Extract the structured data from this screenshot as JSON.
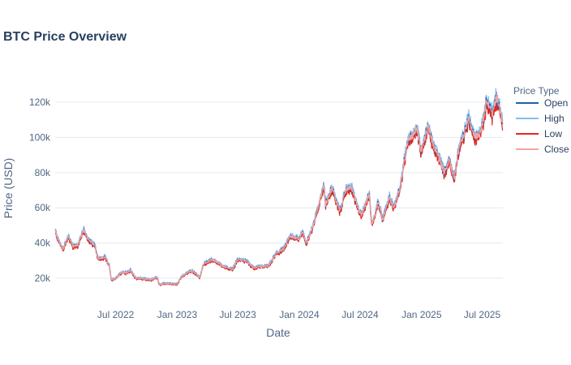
{
  "chart_data": {
    "type": "line",
    "title": "BTC Price Overview",
    "xlabel": "Date",
    "ylabel": "Price (USD)",
    "x_range": [
      "2022-01-01",
      "2025-09-01"
    ],
    "ylim": [
      8000,
      132000
    ],
    "y_ticks": [
      20000,
      40000,
      60000,
      80000,
      100000,
      120000
    ],
    "y_tick_labels": [
      "20k",
      "40k",
      "60k",
      "80k",
      "100k",
      "120k"
    ],
    "x_ticks": [
      "2022-07-01",
      "2023-01-01",
      "2023-07-01",
      "2024-01-01",
      "2024-07-01",
      "2025-01-01",
      "2025-07-01"
    ],
    "x_tick_labels": [
      "Jul 2022",
      "Jan 2023",
      "Jul 2023",
      "Jan 2024",
      "Jul 2024",
      "Jan 2025",
      "Jul 2025"
    ],
    "grid": true,
    "legend_title": "Price Type",
    "legend_position": "right",
    "series_colors": {
      "Open": "#1f5fa8",
      "High": "#7fbef5",
      "Low": "#e3281f",
      "Close": "#f5a3a0"
    },
    "close_points": [
      [
        "2022-01-01",
        47000
      ],
      [
        "2022-01-10",
        41800
      ],
      [
        "2022-01-24",
        36500
      ],
      [
        "2022-02-10",
        44000
      ],
      [
        "2022-02-24",
        38000
      ],
      [
        "2022-03-10",
        39000
      ],
      [
        "2022-03-28",
        47500
      ],
      [
        "2022-04-10",
        42000
      ],
      [
        "2022-04-30",
        38500
      ],
      [
        "2022-05-10",
        31000
      ],
      [
        "2022-05-31",
        31800
      ],
      [
        "2022-06-12",
        27000
      ],
      [
        "2022-06-18",
        19000
      ],
      [
        "2022-06-30",
        20000
      ],
      [
        "2022-07-20",
        23500
      ],
      [
        "2022-08-01",
        23000
      ],
      [
        "2022-08-14",
        24500
      ],
      [
        "2022-08-31",
        20000
      ],
      [
        "2022-09-15",
        20000
      ],
      [
        "2022-10-01",
        19300
      ],
      [
        "2022-10-15",
        19200
      ],
      [
        "2022-11-01",
        20500
      ],
      [
        "2022-11-09",
        16500
      ],
      [
        "2022-11-30",
        17000
      ],
      [
        "2022-12-31",
        16500
      ],
      [
        "2023-01-14",
        20900
      ],
      [
        "2023-01-31",
        23100
      ],
      [
        "2023-02-15",
        24300
      ],
      [
        "2023-03-10",
        20300
      ],
      [
        "2023-03-20",
        28000
      ],
      [
        "2023-04-14",
        30500
      ],
      [
        "2023-04-30",
        29300
      ],
      [
        "2023-05-15",
        27000
      ],
      [
        "2023-06-15",
        25000
      ],
      [
        "2023-06-30",
        30500
      ],
      [
        "2023-07-15",
        30300
      ],
      [
        "2023-07-31",
        29200
      ],
      [
        "2023-08-17",
        26000
      ],
      [
        "2023-09-15",
        26600
      ],
      [
        "2023-10-01",
        27000
      ],
      [
        "2023-10-24",
        34000
      ],
      [
        "2023-11-15",
        36500
      ],
      [
        "2023-12-05",
        44000
      ],
      [
        "2023-12-31",
        42300
      ],
      [
        "2024-01-11",
        46500
      ],
      [
        "2024-01-22",
        39500
      ],
      [
        "2024-02-15",
        52000
      ],
      [
        "2024-03-05",
        66000
      ],
      [
        "2024-03-14",
        73000
      ],
      [
        "2024-03-20",
        62000
      ],
      [
        "2024-04-08",
        71500
      ],
      [
        "2024-05-01",
        58000
      ],
      [
        "2024-05-21",
        71000
      ],
      [
        "2024-06-07",
        71000
      ],
      [
        "2024-06-24",
        60000
      ],
      [
        "2024-07-05",
        56000
      ],
      [
        "2024-07-29",
        68000
      ],
      [
        "2024-08-05",
        50000
      ],
      [
        "2024-08-25",
        64000
      ],
      [
        "2024-09-06",
        53000
      ],
      [
        "2024-09-27",
        66000
      ],
      [
        "2024-10-10",
        60000
      ],
      [
        "2024-10-29",
        72000
      ],
      [
        "2024-11-12",
        88000
      ],
      [
        "2024-11-22",
        98000
      ],
      [
        "2024-12-05",
        101000
      ],
      [
        "2024-12-17",
        106000
      ],
      [
        "2024-12-30",
        92500
      ],
      [
        "2025-01-20",
        106000
      ],
      [
        "2025-02-03",
        97000
      ],
      [
        "2025-02-25",
        87000
      ],
      [
        "2025-03-10",
        80000
      ],
      [
        "2025-03-25",
        87500
      ],
      [
        "2025-04-08",
        76500
      ],
      [
        "2025-04-22",
        93500
      ],
      [
        "2025-05-10",
        103000
      ],
      [
        "2025-05-22",
        111000
      ],
      [
        "2025-06-05",
        101000
      ],
      [
        "2025-06-22",
        101000
      ],
      [
        "2025-07-03",
        109000
      ],
      [
        "2025-07-14",
        121000
      ],
      [
        "2025-08-01",
        113500
      ],
      [
        "2025-08-14",
        123500
      ],
      [
        "2025-08-31",
        108500
      ]
    ]
  }
}
